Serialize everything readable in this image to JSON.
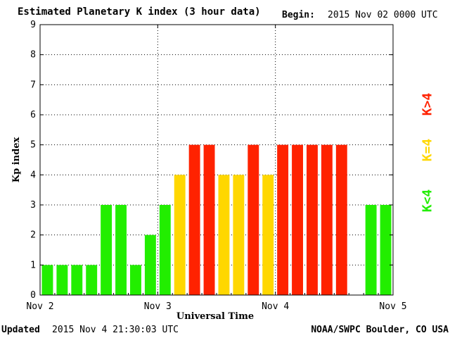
{
  "header": {
    "title": "Estimated Planetary K index (3 hour data)",
    "begin_label": "Begin:",
    "begin_value": "2015 Nov 02 0000 UTC"
  },
  "footer": {
    "updated_label": "Updated",
    "updated_value": "2015 Nov  4 21:30:03 UTC",
    "credit": "NOAA/SWPC Boulder, CO USA"
  },
  "chart_data": {
    "type": "bar",
    "title": "Estimated Planetary K index (3 hour data)",
    "xlabel": "Universal Time",
    "ylabel": "Kp index",
    "ylim": [
      0,
      9
    ],
    "yticks": [
      "0",
      "1",
      "2",
      "3",
      "4",
      "5",
      "6",
      "7",
      "8",
      "9"
    ],
    "xticks": [
      "Nov 2",
      "Nov 3",
      "Nov 4",
      "Nov 5"
    ],
    "grid": true,
    "bar_slots": 24,
    "values": [
      1,
      1,
      1,
      1,
      3,
      3,
      1,
      2,
      3,
      4,
      5,
      5,
      4,
      4,
      5,
      4,
      5,
      5,
      5,
      5,
      5,
      null,
      3,
      3
    ],
    "colors": {
      "low": "#22ee00",
      "equal": "#ffd700",
      "high": "#ff2200"
    },
    "legend": [
      {
        "text": "K<4",
        "color": "#22ee00"
      },
      {
        "text": "K=4",
        "color": "#ffd700"
      },
      {
        "text": "K>4",
        "color": "#ff2200"
      }
    ],
    "legend_position": "right"
  }
}
